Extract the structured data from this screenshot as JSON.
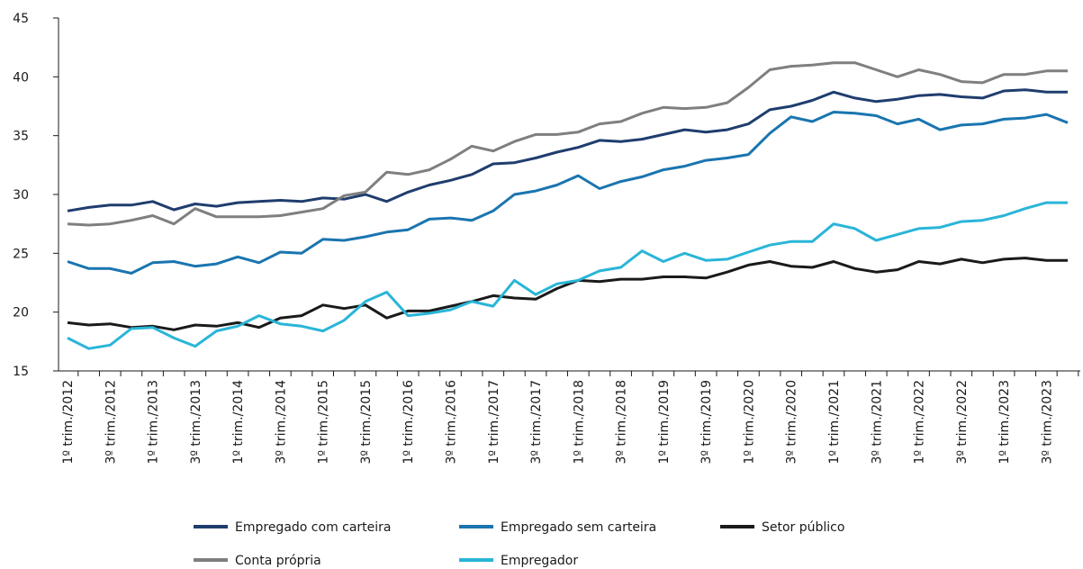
{
  "chart_data": {
    "type": "line",
    "categories": [
      "1º trim./2012",
      null,
      "3º trim./2012",
      null,
      "1º trim./2013",
      null,
      "3º trim./2013",
      null,
      "1º trim./2014",
      null,
      "3º trim./2014",
      null,
      "1º trim./2015",
      null,
      "3º trim./2015",
      null,
      "1º trim./2016",
      null,
      "3º trim./2016",
      null,
      "1º trim./2017",
      null,
      "3º trim./2017",
      null,
      "1º trim./2018",
      null,
      "3º trim./2018",
      null,
      "1º trim./2019",
      null,
      "3º trim./2019",
      null,
      "1º trim./2020",
      null,
      "3º trim./2020",
      null,
      "1º trim./2021",
      null,
      "3º trim./2021",
      null,
      "1º trim./2022",
      null,
      "3º trim./2022",
      null,
      "1º trim./2023",
      null,
      "3º trim./2023",
      null
    ],
    "series": [
      {
        "name": "Empregado com carteira",
        "color": "#1f3d6e",
        "values": [
          28.6,
          28.9,
          29.1,
          29.1,
          29.4,
          28.7,
          29.2,
          29.0,
          29.3,
          29.4,
          29.5,
          29.4,
          29.7,
          29.6,
          30.0,
          29.4,
          30.2,
          30.8,
          31.2,
          31.7,
          32.6,
          32.7,
          33.1,
          33.6,
          34.0,
          34.6,
          34.5,
          34.7,
          35.1,
          35.5,
          35.3,
          35.5,
          36.0,
          37.2,
          37.5,
          38.0,
          38.7,
          38.2,
          37.9,
          38.1,
          38.4,
          38.5,
          38.3,
          38.2,
          38.8,
          38.9,
          38.7,
          38.7
        ]
      },
      {
        "name": "Empregado sem carteira",
        "color": "#1a75b0",
        "values": [
          24.3,
          23.7,
          23.7,
          23.3,
          24.2,
          24.3,
          23.9,
          24.1,
          24.7,
          24.2,
          25.1,
          25.0,
          26.2,
          26.1,
          26.4,
          26.8,
          27.0,
          27.9,
          28.0,
          27.8,
          28.6,
          30.0,
          30.3,
          30.8,
          31.6,
          30.5,
          31.1,
          31.5,
          32.1,
          32.4,
          32.9,
          33.1,
          33.4,
          35.2,
          36.6,
          36.2,
          37.0,
          36.9,
          36.7,
          36.0,
          36.4,
          35.5,
          35.9,
          36.0,
          36.4,
          36.5,
          36.8,
          36.1
        ]
      },
      {
        "name": "Setor público",
        "color": "#1a1a1a",
        "values": [
          19.1,
          18.9,
          19.0,
          18.7,
          18.8,
          18.5,
          18.9,
          18.8,
          19.1,
          18.7,
          19.5,
          19.7,
          20.6,
          20.3,
          20.6,
          19.5,
          20.1,
          20.1,
          20.5,
          20.9,
          21.4,
          21.2,
          21.1,
          22.0,
          22.7,
          22.6,
          22.8,
          22.8,
          23.0,
          23.0,
          22.9,
          23.4,
          24.0,
          24.3,
          23.9,
          23.8,
          24.3,
          23.7,
          23.4,
          23.6,
          24.3,
          24.1,
          24.5,
          24.2,
          24.5,
          24.6,
          24.4,
          24.4
        ]
      },
      {
        "name": "Conta própria",
        "color": "#7f7f7f",
        "values": [
          27.5,
          27.4,
          27.5,
          27.8,
          28.2,
          27.5,
          28.8,
          28.1,
          28.1,
          28.1,
          28.2,
          28.5,
          28.8,
          29.9,
          30.2,
          31.9,
          31.7,
          32.1,
          33.0,
          34.1,
          33.7,
          34.5,
          35.1,
          35.1,
          35.3,
          36.0,
          36.2,
          36.9,
          37.4,
          37.3,
          37.4,
          37.8,
          39.1,
          40.6,
          40.9,
          41.0,
          41.2,
          41.2,
          40.6,
          40.0,
          40.6,
          40.2,
          39.6,
          39.5,
          40.2,
          40.2,
          40.5,
          40.5
        ]
      },
      {
        "name": "Empregador",
        "color": "#29b5d8",
        "values": [
          17.8,
          16.9,
          17.2,
          18.6,
          18.7,
          17.8,
          17.1,
          18.4,
          18.8,
          19.7,
          19.0,
          18.8,
          18.4,
          19.3,
          20.9,
          21.7,
          19.7,
          19.9,
          20.2,
          20.9,
          20.5,
          22.7,
          21.5,
          22.4,
          22.7,
          23.5,
          23.8,
          25.2,
          24.3,
          25.0,
          24.4,
          24.5,
          25.1,
          25.7,
          26.0,
          26.0,
          27.5,
          27.1,
          26.1,
          26.6,
          27.1,
          27.2,
          27.7,
          27.8,
          28.2,
          28.8,
          29.3,
          29.3
        ]
      }
    ],
    "ylim": [
      15,
      45
    ],
    "yticks": [
      15,
      20,
      25,
      30,
      35,
      40,
      45
    ],
    "grid": false
  }
}
